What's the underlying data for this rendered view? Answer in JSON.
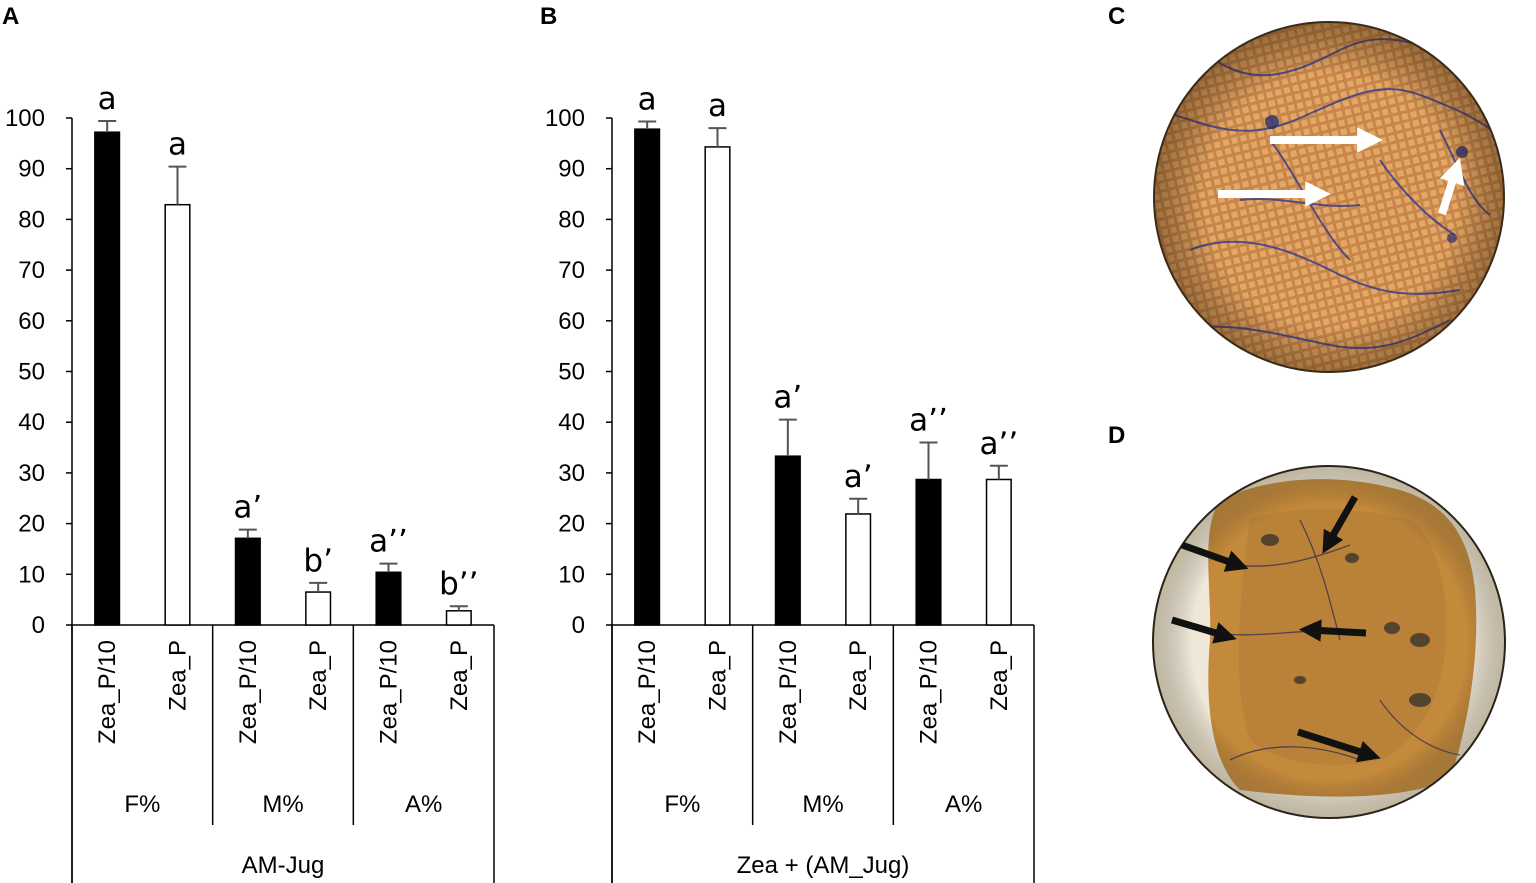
{
  "chart_data": [
    {
      "type": "bar",
      "panel": "A",
      "title": "",
      "ylim": [
        0,
        100
      ],
      "yticks": [
        0,
        10,
        20,
        30,
        40,
        50,
        60,
        70,
        80,
        90,
        100
      ],
      "categories": [
        "Zea_P/10",
        "Zea_P",
        "Zea_P/10",
        "Zea_P",
        "Zea_P/10",
        "Zea_P"
      ],
      "groups": [
        "F%",
        "M%",
        "A%"
      ],
      "xlabel": "AM-Jug",
      "values": [
        97.2,
        82.9,
        17.1,
        6.5,
        10.4,
        2.8
      ],
      "errors": [
        2.2,
        7.5,
        1.7,
        1.8,
        1.7,
        0.9
      ],
      "fill": [
        "black",
        "white",
        "black",
        "white",
        "black",
        "white"
      ],
      "labels": [
        "a",
        "a",
        "a’",
        "b’",
        "a’’",
        "b’’"
      ]
    },
    {
      "type": "bar",
      "panel": "B",
      "title": "",
      "ylim": [
        0,
        100
      ],
      "yticks": [
        0,
        10,
        20,
        30,
        40,
        50,
        60,
        70,
        80,
        90,
        100
      ],
      "categories": [
        "Zea_P/10",
        "Zea_P",
        "Zea_P/10",
        "Zea_P",
        "Zea_P/10",
        "Zea_P"
      ],
      "groups": [
        "F%",
        "M%",
        "A%"
      ],
      "xlabel": "Zea + (AM_Jug)",
      "values": [
        97.8,
        94.3,
        33.3,
        21.9,
        28.7,
        28.7
      ],
      "errors": [
        1.5,
        3.7,
        7.2,
        3.0,
        7.3,
        2.7
      ],
      "fill": [
        "black",
        "white",
        "black",
        "white",
        "black",
        "white"
      ],
      "labels": [
        "a",
        "a",
        "a’",
        "a’",
        "a’’",
        "a’’"
      ]
    }
  ],
  "panels": {
    "a": "A",
    "b": "B",
    "c": "C",
    "d": "D"
  },
  "colors": {
    "bar_dark": "#000000",
    "bar_light": "#ffffff",
    "error_bar": "#555555",
    "photo_c_base": "#c8864a",
    "photo_d_base": "#c48a3c",
    "photo_d_surround": "#efe8d8"
  }
}
